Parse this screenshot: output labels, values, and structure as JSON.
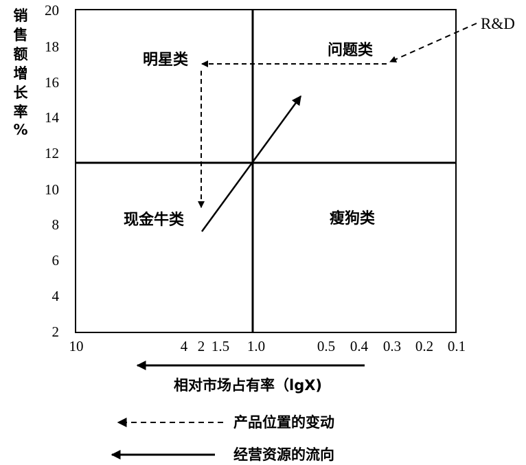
{
  "y_axis": {
    "label_chars": [
      "销",
      "售",
      "额",
      "增",
      "长",
      "率",
      "%"
    ],
    "ticks": [
      "20",
      "18",
      "16",
      "14",
      "12",
      "10",
      "8",
      "6",
      "4",
      "2"
    ]
  },
  "x_axis": {
    "ticks": [
      "10",
      "4",
      "2",
      "1.5",
      "1.0",
      "0.5",
      "0.4",
      "0.3",
      "0.2",
      "0.1"
    ],
    "label": "相对市场占有率（lgX)"
  },
  "quadrants": {
    "star": "明星类",
    "question": "问题类",
    "cash_cow": "现金牛类",
    "dog": "瘦狗类"
  },
  "rd_label": "R&D",
  "legend": {
    "dashed": "产品位置的变动",
    "solid": "经营资源的流向"
  }
}
